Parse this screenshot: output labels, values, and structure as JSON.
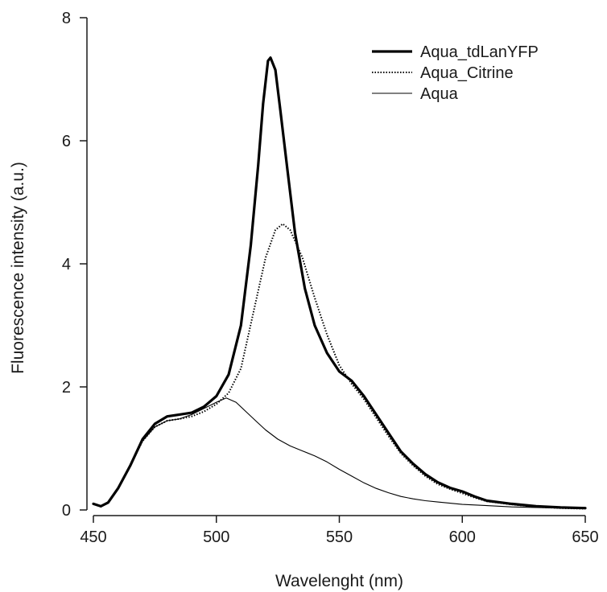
{
  "chart_data": {
    "type": "line",
    "title": "",
    "xlabel": "Wavelenght (nm)",
    "ylabel": "Fluorescence intensity (a.u.)",
    "xlim": [
      450,
      650
    ],
    "ylim": [
      0,
      8
    ],
    "x_ticks": [
      450,
      500,
      550,
      600,
      650
    ],
    "y_ticks": [
      0,
      2,
      4,
      6,
      8
    ],
    "x_tick_labels": [
      "450",
      "500",
      "550",
      "600",
      "650"
    ],
    "y_tick_labels": [
      "0",
      "2",
      "4",
      "6",
      "8"
    ],
    "grid": false,
    "legend_position": "top-right",
    "series": [
      {
        "name": "Aqua_tdLanYFP",
        "line_style": "solid-thick",
        "color": "#000000",
        "points": [
          [
            450,
            0.1
          ],
          [
            453,
            0.06
          ],
          [
            456,
            0.12
          ],
          [
            460,
            0.35
          ],
          [
            465,
            0.72
          ],
          [
            470,
            1.15
          ],
          [
            475,
            1.4
          ],
          [
            480,
            1.52
          ],
          [
            485,
            1.55
          ],
          [
            490,
            1.58
          ],
          [
            495,
            1.68
          ],
          [
            500,
            1.85
          ],
          [
            505,
            2.2
          ],
          [
            510,
            3.0
          ],
          [
            514,
            4.3
          ],
          [
            517,
            5.6
          ],
          [
            519,
            6.6
          ],
          [
            521,
            7.3
          ],
          [
            522,
            7.35
          ],
          [
            524,
            7.15
          ],
          [
            526,
            6.5
          ],
          [
            529,
            5.5
          ],
          [
            532,
            4.5
          ],
          [
            536,
            3.6
          ],
          [
            540,
            3.0
          ],
          [
            545,
            2.55
          ],
          [
            550,
            2.25
          ],
          [
            555,
            2.1
          ],
          [
            560,
            1.85
          ],
          [
            565,
            1.55
          ],
          [
            570,
            1.25
          ],
          [
            575,
            0.95
          ],
          [
            580,
            0.75
          ],
          [
            585,
            0.58
          ],
          [
            590,
            0.45
          ],
          [
            595,
            0.36
          ],
          [
            600,
            0.3
          ],
          [
            605,
            0.22
          ],
          [
            610,
            0.15
          ],
          [
            620,
            0.1
          ],
          [
            630,
            0.06
          ],
          [
            640,
            0.04
          ],
          [
            650,
            0.03
          ]
        ]
      },
      {
        "name": "Aqua_Citrine",
        "line_style": "dotted",
        "color": "#000000",
        "points": [
          [
            450,
            0.1
          ],
          [
            453,
            0.06
          ],
          [
            456,
            0.12
          ],
          [
            460,
            0.35
          ],
          [
            465,
            0.72
          ],
          [
            470,
            1.12
          ],
          [
            475,
            1.35
          ],
          [
            480,
            1.45
          ],
          [
            485,
            1.48
          ],
          [
            490,
            1.52
          ],
          [
            495,
            1.6
          ],
          [
            500,
            1.72
          ],
          [
            505,
            1.9
          ],
          [
            510,
            2.3
          ],
          [
            515,
            3.2
          ],
          [
            520,
            4.1
          ],
          [
            524,
            4.55
          ],
          [
            527,
            4.65
          ],
          [
            530,
            4.55
          ],
          [
            535,
            4.1
          ],
          [
            540,
            3.45
          ],
          [
            545,
            2.85
          ],
          [
            550,
            2.35
          ],
          [
            555,
            2.05
          ],
          [
            560,
            1.8
          ],
          [
            565,
            1.5
          ],
          [
            570,
            1.2
          ],
          [
            575,
            0.92
          ],
          [
            580,
            0.72
          ],
          [
            585,
            0.55
          ],
          [
            590,
            0.42
          ],
          [
            595,
            0.34
          ],
          [
            600,
            0.27
          ],
          [
            605,
            0.2
          ],
          [
            610,
            0.14
          ],
          [
            620,
            0.09
          ],
          [
            630,
            0.05
          ],
          [
            640,
            0.03
          ],
          [
            650,
            0.02
          ]
        ]
      },
      {
        "name": "Aqua",
        "line_style": "solid-thin",
        "color": "#000000",
        "points": [
          [
            450,
            0.1
          ],
          [
            453,
            0.06
          ],
          [
            456,
            0.12
          ],
          [
            460,
            0.35
          ],
          [
            465,
            0.72
          ],
          [
            470,
            1.12
          ],
          [
            475,
            1.35
          ],
          [
            480,
            1.45
          ],
          [
            485,
            1.48
          ],
          [
            490,
            1.55
          ],
          [
            495,
            1.65
          ],
          [
            500,
            1.75
          ],
          [
            504,
            1.82
          ],
          [
            508,
            1.75
          ],
          [
            512,
            1.6
          ],
          [
            516,
            1.45
          ],
          [
            520,
            1.3
          ],
          [
            525,
            1.15
          ],
          [
            530,
            1.04
          ],
          [
            535,
            0.96
          ],
          [
            540,
            0.88
          ],
          [
            545,
            0.78
          ],
          [
            550,
            0.66
          ],
          [
            555,
            0.55
          ],
          [
            560,
            0.44
          ],
          [
            565,
            0.35
          ],
          [
            570,
            0.28
          ],
          [
            575,
            0.22
          ],
          [
            580,
            0.18
          ],
          [
            585,
            0.15
          ],
          [
            590,
            0.13
          ],
          [
            595,
            0.11
          ],
          [
            600,
            0.09
          ],
          [
            610,
            0.07
          ],
          [
            620,
            0.05
          ],
          [
            630,
            0.04
          ],
          [
            640,
            0.03
          ],
          [
            650,
            0.02
          ]
        ]
      }
    ]
  }
}
